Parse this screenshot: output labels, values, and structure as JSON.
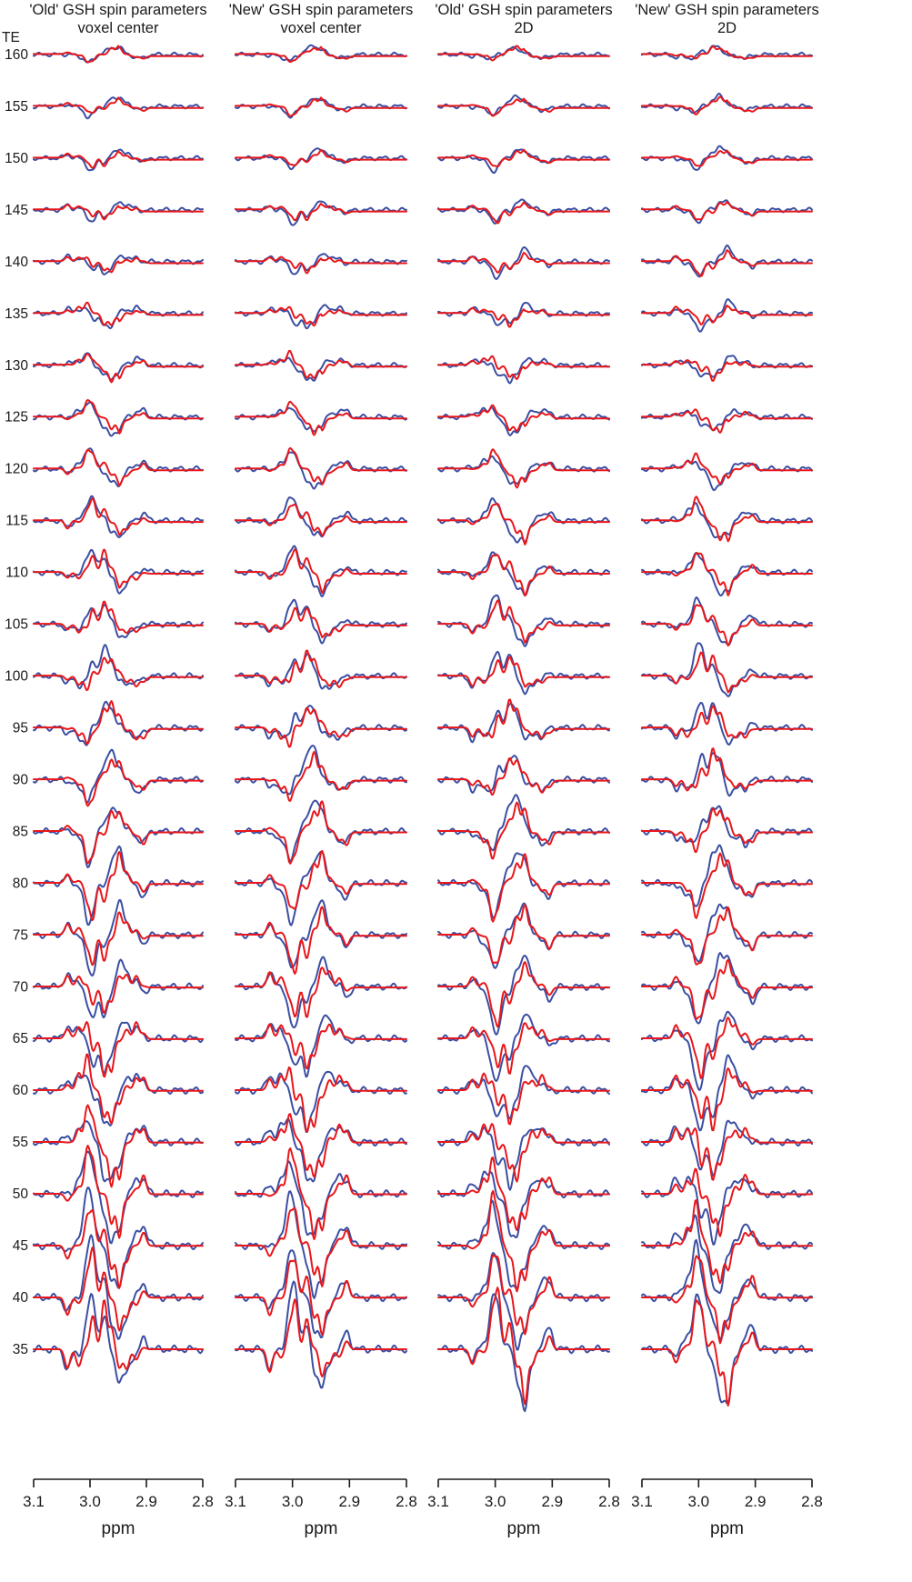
{
  "chart_data": {
    "type": "line",
    "y_axis_label": "TE",
    "te_values": [
      160,
      155,
      150,
      145,
      140,
      135,
      130,
      125,
      120,
      115,
      110,
      105,
      100,
      95,
      90,
      85,
      80,
      75,
      70,
      65,
      60,
      55,
      50,
      45,
      40,
      35
    ],
    "x_tick_labels": [
      "3.1",
      "3.0",
      "2.9",
      "2.8"
    ],
    "x_tick_values": [
      3.1,
      3.0,
      2.9,
      2.8
    ],
    "xlim": [
      3.1,
      2.8
    ],
    "xlabel": "ppm",
    "grid": false,
    "colors": {
      "series_a": "#e8171b",
      "series_b": "#3b4fa3"
    },
    "panels": [
      {
        "title_line1": "'Old' GSH spin parameters",
        "title_line2": "voxel center"
      },
      {
        "title_line1": "'New' GSH spin parameters",
        "title_line2": "voxel center"
      },
      {
        "title_line1": "'Old' GSH spin parameters",
        "title_line2": "2D"
      },
      {
        "title_line1": "'New' GSH spin parameters",
        "title_line2": "2D"
      }
    ]
  }
}
